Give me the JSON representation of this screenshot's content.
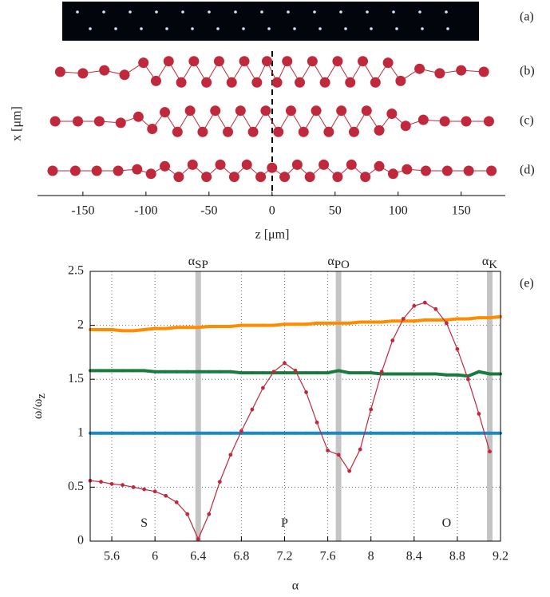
{
  "chart_data": [
    {
      "type": "scatter",
      "image_label": "(a)",
      "xlabel": "z [μm]",
      "ylabel": "x [μm]",
      "xlim": [
        -186,
        185
      ],
      "xticks": [
        -150,
        -100,
        -50,
        0,
        50,
        100,
        150
      ],
      "color": "#c0283c",
      "series": [
        {
          "label": "(b)",
          "x": [
            -168,
            -150,
            -133,
            -117,
            -102,
            -92,
            -82,
            -72,
            -62,
            -52,
            -42,
            -32,
            -22,
            -12,
            -4,
            4,
            12,
            22,
            32,
            42,
            52,
            62,
            72,
            82,
            92,
            102,
            117,
            133,
            150,
            168
          ],
          "values": [
            0,
            -1,
            1,
            -2,
            6,
            -6,
            7,
            -7,
            7,
            -7,
            7,
            -7,
            7,
            -7,
            7,
            -7,
            7,
            -7,
            7,
            -7,
            7,
            -7,
            7,
            -7,
            6,
            -6,
            2,
            -1,
            1,
            0
          ]
        },
        {
          "label": "(c)",
          "x": [
            -172,
            -154,
            -137,
            -120,
            -106,
            -95,
            -85,
            -75,
            -65,
            -55,
            -45,
            -35,
            -25,
            -15,
            -5,
            5,
            15,
            25,
            35,
            45,
            55,
            65,
            75,
            85,
            95,
            106,
            120,
            137,
            154,
            172
          ],
          "values": [
            0,
            0,
            0,
            -1,
            3,
            -5,
            6,
            -7,
            7,
            -7,
            7,
            -7,
            7,
            -7,
            7,
            -7,
            7,
            -7,
            7,
            -7,
            7,
            -7,
            7,
            -6,
            5,
            -3,
            1,
            0,
            0,
            0
          ]
        },
        {
          "label": "(d)",
          "x": [
            -174,
            -156,
            -139,
            -122,
            -107,
            -96,
            -85,
            -74,
            -63,
            -52,
            -41,
            -30,
            -20,
            -9,
            0,
            10,
            20,
            30,
            41,
            52,
            63,
            74,
            85,
            96,
            107,
            122,
            139,
            156,
            174
          ],
          "values": [
            0,
            0,
            0,
            0,
            1,
            -2,
            3,
            -4,
            4,
            -4,
            4,
            -4,
            4,
            -4,
            2,
            -4,
            4,
            -4,
            4,
            -4,
            4,
            -4,
            3,
            -2,
            1,
            0,
            0,
            0,
            0
          ]
        }
      ]
    },
    {
      "type": "line",
      "panel_label": "(e)",
      "xlabel": "α",
      "ylabel": "ω/ω",
      "ylabel_sub": "z",
      "xlim": [
        5.4,
        9.2
      ],
      "xticks": [
        5.6,
        6,
        6.4,
        6.8,
        7.2,
        7.6,
        8,
        8.4,
        8.8,
        9.2
      ],
      "ylim": [
        0,
        2.5
      ],
      "yticks": [
        0,
        0.5,
        1,
        1.5,
        2,
        2.5
      ],
      "grid": true,
      "bands": [
        {
          "value": 6.4,
          "symbol": "α",
          "subscript": "SP"
        },
        {
          "value": 7.7,
          "symbol": "α",
          "subscript": "PO"
        },
        {
          "value": 9.1,
          "symbol": "α",
          "subscript": "K"
        }
      ],
      "annotations": [
        {
          "text": "S",
          "x": 5.9,
          "y": 0.16
        },
        {
          "text": "P",
          "x": 7.2,
          "y": 0.16
        },
        {
          "text": "O",
          "x": 8.7,
          "y": 0.16
        }
      ],
      "x": [
        5.4,
        5.5,
        5.6,
        5.7,
        5.8,
        5.9,
        6.0,
        6.1,
        6.2,
        6.3,
        6.4,
        6.5,
        6.6,
        6.7,
        6.8,
        6.9,
        7.0,
        7.1,
        7.2,
        7.3,
        7.4,
        7.5,
        7.6,
        7.7,
        7.8,
        7.9,
        8.0,
        8.1,
        8.2,
        8.3,
        8.4,
        8.5,
        8.6,
        8.7,
        8.8,
        8.9,
        9.0,
        9.1,
        9.2
      ],
      "series": [
        {
          "color": "#1a8ac4",
          "values": [
            1,
            1,
            1,
            1,
            1,
            1,
            1,
            1,
            1,
            1,
            1,
            1,
            1,
            1,
            1,
            1,
            1,
            1,
            1,
            1,
            1,
            1,
            1,
            1,
            1,
            1,
            1,
            1,
            1,
            1,
            1,
            1,
            1,
            1,
            1,
            1,
            1,
            1,
            1
          ]
        },
        {
          "color": "#ff8c00",
          "values": [
            1.96,
            1.96,
            1.96,
            1.95,
            1.95,
            1.96,
            1.97,
            1.97,
            1.98,
            1.98,
            1.98,
            1.99,
            1.99,
            1.99,
            2.0,
            2.0,
            2.0,
            2.0,
            2.01,
            2.01,
            2.01,
            2.02,
            2.02,
            2.02,
            2.02,
            2.03,
            2.03,
            2.03,
            2.04,
            2.04,
            2.04,
            2.05,
            2.05,
            2.05,
            2.06,
            2.06,
            2.07,
            2.07,
            2.08
          ]
        },
        {
          "color": "#1a7a40",
          "values": [
            1.58,
            1.58,
            1.58,
            1.58,
            1.58,
            1.58,
            1.57,
            1.57,
            1.57,
            1.57,
            1.57,
            1.57,
            1.57,
            1.57,
            1.56,
            1.56,
            1.56,
            1.56,
            1.56,
            1.56,
            1.56,
            1.56,
            1.56,
            1.58,
            1.56,
            1.56,
            1.56,
            1.55,
            1.55,
            1.55,
            1.55,
            1.55,
            1.55,
            1.54,
            1.54,
            1.53,
            1.57,
            1.55,
            1.55
          ]
        },
        {
          "color": "#c0283c",
          "values": [
            0.56,
            0.55,
            0.53,
            0.52,
            0.5,
            0.48,
            0.46,
            0.42,
            0.36,
            0.25,
            0.02,
            0.25,
            0.55,
            0.8,
            1.02,
            1.22,
            1.42,
            1.57,
            1.65,
            1.58,
            1.38,
            1.1,
            0.84,
            0.8,
            0.65,
            0.85,
            1.22,
            1.57,
            1.86,
            2.06,
            2.18,
            2.21,
            2.15,
            2.02,
            1.78,
            1.5,
            1.18,
            0.83,
            null
          ]
        }
      ]
    }
  ]
}
